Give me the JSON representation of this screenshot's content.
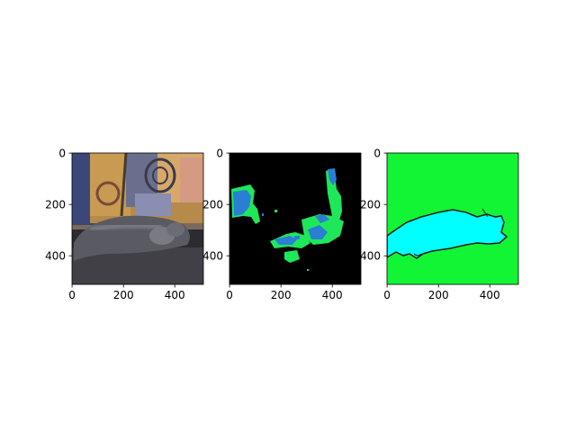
{
  "figure": {
    "background": "#ffffff",
    "panels": [
      {
        "name": "input-photo",
        "content": "photo of a grey cat lying on a dark couch with a colourful patterned blanket",
        "x_ticks": [
          "0",
          "200",
          "400"
        ],
        "y_ticks": [
          "0",
          "200",
          "400"
        ],
        "x_range": [
          0,
          512
        ],
        "y_range": [
          512,
          0
        ]
      },
      {
        "name": "predicted-mask",
        "content": "segmentation prediction: scattered blue and green blobs on black background",
        "colors": {
          "background": "#000000",
          "class_a": "#2a7fd4",
          "class_b": "#1ee85a"
        },
        "x_ticks": [
          "0",
          "200",
          "400"
        ],
        "y_ticks": [
          "0",
          "200",
          "400"
        ],
        "x_range": [
          0,
          512
        ],
        "y_range": [
          512,
          0
        ]
      },
      {
        "name": "ground-truth-mask",
        "content": "ground-truth mask: cyan cat silhouette with dark outline on green background",
        "colors": {
          "background": "#11f535",
          "foreground": "#00ffff",
          "outline": "#1a1a1a"
        },
        "x_ticks": [
          "0",
          "200",
          "400"
        ],
        "y_ticks": [
          "0",
          "200",
          "400"
        ],
        "x_range": [
          0,
          512
        ],
        "y_range": [
          512,
          0
        ]
      }
    ]
  }
}
